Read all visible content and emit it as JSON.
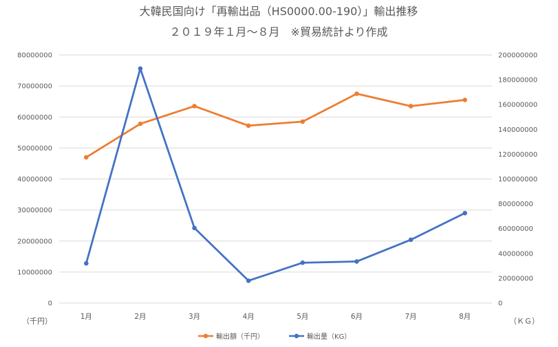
{
  "chart_data": {
    "type": "line",
    "title": "大韓民国向け「再輸出品（HS0000.00-190）」輸出推移",
    "subtitle": "２０１９年１月～８月　※貿易統計より作成",
    "categories": [
      "1月",
      "2月",
      "3月",
      "4月",
      "5月",
      "6月",
      "7月",
      "8月"
    ],
    "y_left": {
      "unit_label": "（千円）",
      "range": [
        0,
        80000000
      ],
      "ticks": [
        "0",
        "10000000",
        "20000000",
        "30000000",
        "40000000",
        "50000000",
        "60000000",
        "70000000",
        "80000000"
      ]
    },
    "y_right": {
      "unit_label": "（ＫＧ）",
      "range": [
        0,
        200000000
      ],
      "ticks": [
        "0",
        "20000000",
        "40000000",
        "60000000",
        "80000000",
        "100000000",
        "120000000",
        "140000000",
        "160000000",
        "180000000",
        "200000000"
      ]
    },
    "series": [
      {
        "name": "輸出額（千円）",
        "axis": "left",
        "color": "#ED7D31",
        "values": [
          47000000,
          57800000,
          63500000,
          57200000,
          58500000,
          67500000,
          63500000,
          65500000
        ]
      },
      {
        "name": "輸出量（KG）",
        "axis": "right",
        "color": "#4472C4",
        "values": [
          32000000,
          189000000,
          60500000,
          18000000,
          32500000,
          33500000,
          51000000,
          72500000
        ]
      }
    ],
    "grid": true,
    "legend_position": "bottom"
  }
}
